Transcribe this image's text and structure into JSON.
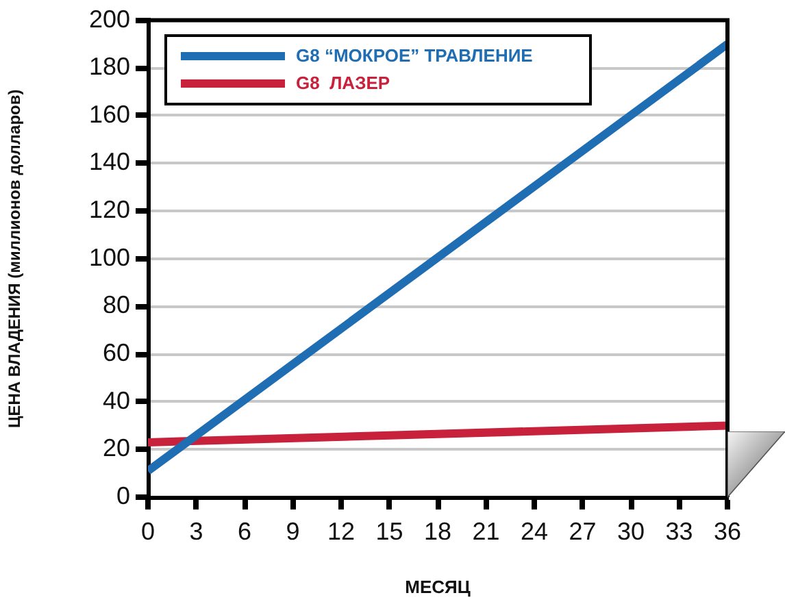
{
  "chart_data": {
    "type": "line",
    "xlabel": "МЕСЯЦ",
    "ylabel": "ЦЕНА ВЛАДЕНИЯ (миллионов долларов)",
    "x": [
      0,
      36
    ],
    "series": [
      {
        "name": "G8 “МОКРОЕ” ТРАВЛЕНИЕ",
        "color": "#1f6db3",
        "values": [
          11,
          190
        ]
      },
      {
        "name": "G8  ЛАЗЕР",
        "color": "#c8213b",
        "values": [
          23,
          30
        ]
      }
    ],
    "xlim": [
      0,
      36
    ],
    "xticks": [
      0,
      3,
      6,
      9,
      12,
      15,
      18,
      21,
      24,
      27,
      30,
      33,
      36
    ],
    "ylim": [
      0,
      200
    ],
    "yticks": [
      0,
      20,
      40,
      60,
      80,
      100,
      120,
      140,
      160,
      180,
      200
    ],
    "grid": "y",
    "legend": "top left",
    "marker": "none",
    "line_style": "solid"
  }
}
